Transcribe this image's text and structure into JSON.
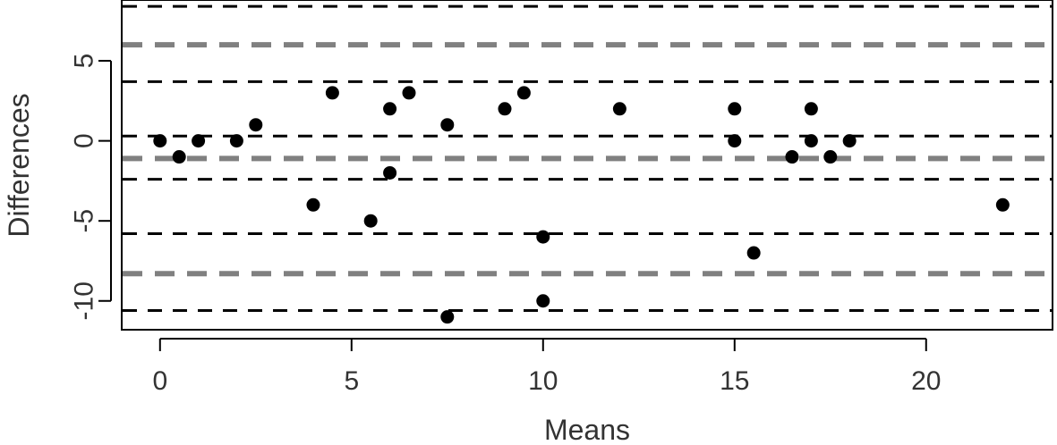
{
  "chart_data": {
    "type": "scatter",
    "title": "",
    "xlabel": "Means",
    "ylabel": "Differences",
    "xlim": [
      -1.0,
      23.3
    ],
    "ylim": [
      -11.8,
      8.8
    ],
    "x_ticks": [
      0,
      5,
      10,
      15,
      20
    ],
    "y_ticks": [
      -10,
      -5,
      0,
      5
    ],
    "grid": false,
    "points": [
      {
        "x": 0,
        "y": 0
      },
      {
        "x": 0.5,
        "y": -1
      },
      {
        "x": 1,
        "y": 0
      },
      {
        "x": 2,
        "y": 0
      },
      {
        "x": 2.5,
        "y": 1
      },
      {
        "x": 4,
        "y": -4
      },
      {
        "x": 4.5,
        "y": 3
      },
      {
        "x": 5.5,
        "y": -5
      },
      {
        "x": 6,
        "y": 2
      },
      {
        "x": 6,
        "y": -2
      },
      {
        "x": 6.5,
        "y": 3
      },
      {
        "x": 7.5,
        "y": 1
      },
      {
        "x": 7.5,
        "y": -11
      },
      {
        "x": 9,
        "y": 2
      },
      {
        "x": 9.5,
        "y": 3
      },
      {
        "x": 10,
        "y": -6
      },
      {
        "x": 10,
        "y": -10
      },
      {
        "x": 12,
        "y": 2
      },
      {
        "x": 15,
        "y": 2
      },
      {
        "x": 15,
        "y": 0
      },
      {
        "x": 15.5,
        "y": -7
      },
      {
        "x": 16.5,
        "y": -1
      },
      {
        "x": 17,
        "y": 2
      },
      {
        "x": 17,
        "y": 0
      },
      {
        "x": 17.5,
        "y": -1
      },
      {
        "x": 18,
        "y": 0
      },
      {
        "x": 22,
        "y": -4
      }
    ],
    "reference_lines": [
      {
        "y": 8.4,
        "style": "thin-black-dashed",
        "color": "#000000"
      },
      {
        "y": 6.0,
        "style": "thick-gray-dashed",
        "color": "#808080"
      },
      {
        "y": 3.7,
        "style": "thin-black-dashed",
        "color": "#000000"
      },
      {
        "y": 0.3,
        "style": "thin-black-dashed",
        "color": "#000000"
      },
      {
        "y": -1.1,
        "style": "thick-gray-dashed",
        "color": "#808080"
      },
      {
        "y": -2.4,
        "style": "thin-black-dashed",
        "color": "#000000"
      },
      {
        "y": -5.8,
        "style": "thin-black-dashed",
        "color": "#000000"
      },
      {
        "y": -8.3,
        "style": "thick-gray-dashed",
        "color": "#808080"
      },
      {
        "y": -10.6,
        "style": "thin-black-dashed",
        "color": "#000000"
      }
    ],
    "point_color": "#000000"
  }
}
